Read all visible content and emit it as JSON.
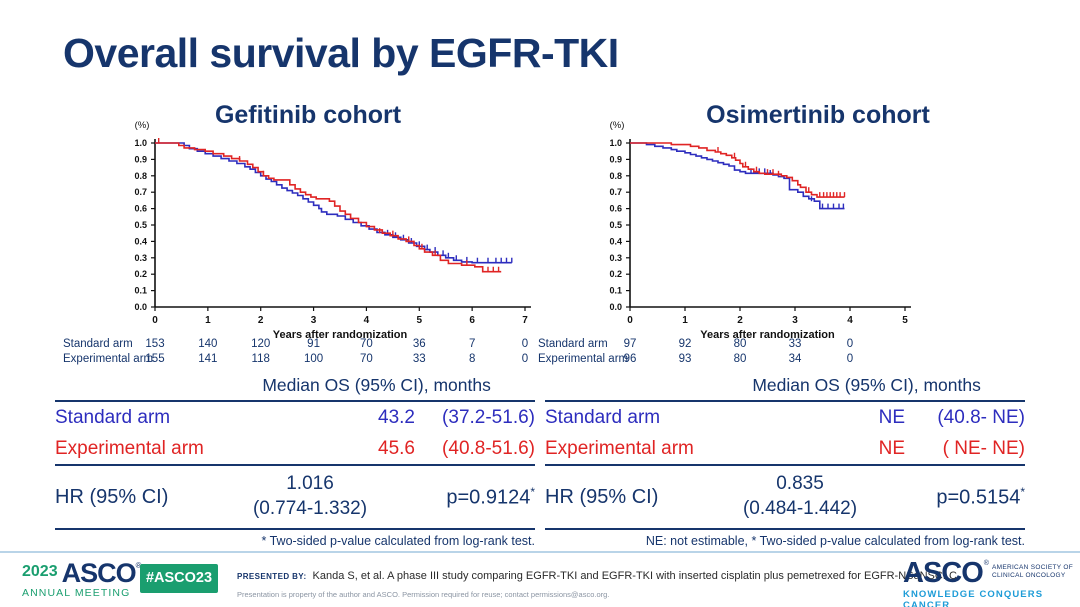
{
  "slide": {
    "title": "Overall survival by EGFR-TKI"
  },
  "colors": {
    "navy": "#16356c",
    "standard_blue": "#2d2dbe",
    "experimental_red": "#e02424",
    "asco_green": "#1a9e6f",
    "tagline_blue": "#1e9cd7",
    "divider_blue": "#b9d4e8"
  },
  "chart_data": [
    {
      "type": "line",
      "subtype": "kaplan-meier-step",
      "title": "Gefitinib cohort",
      "ylabel": "(%)",
      "xlabel": "Years after randomization",
      "xlim": [
        0,
        7
      ],
      "ylim": [
        0,
        1.0
      ],
      "xticks": [
        "0",
        "1",
        "2",
        "3",
        "4",
        "5",
        "6",
        "7"
      ],
      "yticks": [
        "0.0",
        "0.1",
        "0.2",
        "0.3",
        "0.4",
        "0.5",
        "0.6",
        "0.7",
        "0.8",
        "0.9",
        "1.0"
      ],
      "grid": false,
      "legend": "none",
      "series": [
        {
          "name": "Standard arm",
          "color": "#2d2dbe",
          "x_end": 6.75,
          "points": [
            [
              0,
              1.0
            ],
            [
              0.55,
              0.985
            ],
            [
              0.65,
              0.965
            ],
            [
              0.8,
              0.95
            ],
            [
              0.95,
              0.935
            ],
            [
              1.1,
              0.92
            ],
            [
              1.25,
              0.905
            ],
            [
              1.4,
              0.89
            ],
            [
              1.55,
              0.875
            ],
            [
              1.7,
              0.855
            ],
            [
              1.8,
              0.84
            ],
            [
              1.9,
              0.82
            ],
            [
              2.0,
              0.8
            ],
            [
              2.1,
              0.78
            ],
            [
              2.2,
              0.765
            ],
            [
              2.3,
              0.745
            ],
            [
              2.4,
              0.725
            ],
            [
              2.5,
              0.71
            ],
            [
              2.6,
              0.695
            ],
            [
              2.7,
              0.68
            ],
            [
              2.8,
              0.66
            ],
            [
              2.9,
              0.64
            ],
            [
              3.0,
              0.62
            ],
            [
              3.1,
              0.6
            ],
            [
              3.15,
              0.58
            ],
            [
              3.25,
              0.565
            ],
            [
              3.45,
              0.555
            ],
            [
              3.6,
              0.535
            ],
            [
              3.75,
              0.515
            ],
            [
              3.9,
              0.495
            ],
            [
              4.05,
              0.475
            ],
            [
              4.2,
              0.455
            ],
            [
              4.35,
              0.44
            ],
            [
              4.5,
              0.425
            ],
            [
              4.65,
              0.41
            ],
            [
              4.8,
              0.39
            ],
            [
              4.95,
              0.37
            ],
            [
              5.1,
              0.35
            ],
            [
              5.2,
              0.335
            ],
            [
              5.35,
              0.315
            ],
            [
              5.5,
              0.3
            ],
            [
              5.65,
              0.285
            ],
            [
              5.8,
              0.275
            ],
            [
              6.0,
              0.27
            ]
          ],
          "censors": [
            [
              4.4,
              0.44
            ],
            [
              4.55,
              0.425
            ],
            [
              4.7,
              0.41
            ],
            [
              4.85,
              0.39
            ],
            [
              5.0,
              0.37
            ],
            [
              5.15,
              0.35
            ],
            [
              5.3,
              0.335
            ],
            [
              5.45,
              0.315
            ],
            [
              5.55,
              0.3
            ],
            [
              5.7,
              0.285
            ],
            [
              5.9,
              0.275
            ],
            [
              6.1,
              0.27
            ],
            [
              6.3,
              0.27
            ],
            [
              6.45,
              0.27
            ],
            [
              6.55,
              0.27
            ],
            [
              6.65,
              0.27
            ],
            [
              6.75,
              0.27
            ]
          ]
        },
        {
          "name": "Experimental arm",
          "color": "#e02424",
          "x_end": 6.55,
          "points": [
            [
              0,
              1.0
            ],
            [
              0.45,
              0.985
            ],
            [
              0.55,
              0.97
            ],
            [
              0.75,
              0.96
            ],
            [
              0.95,
              0.95
            ],
            [
              1.1,
              0.935
            ],
            [
              1.3,
              0.92
            ],
            [
              1.45,
              0.905
            ],
            [
              1.6,
              0.89
            ],
            [
              1.75,
              0.87
            ],
            [
              1.85,
              0.85
            ],
            [
              1.95,
              0.825
            ],
            [
              2.05,
              0.8
            ],
            [
              2.15,
              0.785
            ],
            [
              2.25,
              0.775
            ],
            [
              2.55,
              0.745
            ],
            [
              2.65,
              0.72
            ],
            [
              2.75,
              0.7
            ],
            [
              2.85,
              0.685
            ],
            [
              2.95,
              0.67
            ],
            [
              3.05,
              0.66
            ],
            [
              3.3,
              0.645
            ],
            [
              3.4,
              0.615
            ],
            [
              3.5,
              0.585
            ],
            [
              3.6,
              0.565
            ],
            [
              3.7,
              0.54
            ],
            [
              3.85,
              0.515
            ],
            [
              4.0,
              0.49
            ],
            [
              4.15,
              0.47
            ],
            [
              4.3,
              0.45
            ],
            [
              4.45,
              0.435
            ],
            [
              4.6,
              0.415
            ],
            [
              4.75,
              0.4
            ],
            [
              4.9,
              0.375
            ],
            [
              5.0,
              0.355
            ],
            [
              5.1,
              0.335
            ],
            [
              5.25,
              0.315
            ],
            [
              5.4,
              0.285
            ],
            [
              5.55,
              0.265
            ],
            [
              5.8,
              0.255
            ],
            [
              6.05,
              0.245
            ],
            [
              6.2,
              0.215
            ]
          ],
          "censors": [
            [
              0.07,
              1.0
            ],
            [
              1.6,
              0.89
            ],
            [
              2.05,
              0.8
            ],
            [
              4.25,
              0.45
            ],
            [
              4.5,
              0.435
            ],
            [
              4.8,
              0.4
            ],
            [
              5.05,
              0.355
            ],
            [
              5.3,
              0.315
            ],
            [
              5.9,
              0.255
            ],
            [
              6.3,
              0.215
            ],
            [
              6.4,
              0.215
            ],
            [
              6.5,
              0.215
            ]
          ]
        }
      ],
      "at_risk": {
        "rows": [
          {
            "label": "Standard arm",
            "values": [
              "153",
              "140",
              "120",
              "91",
              "70",
              "36",
              "7",
              "0"
            ]
          },
          {
            "label": "Experimental arm",
            "values": [
              "155",
              "141",
              "118",
              "100",
              "70",
              "33",
              "8",
              "0"
            ]
          }
        ]
      }
    },
    {
      "type": "line",
      "subtype": "kaplan-meier-step",
      "title": "Osimertinib cohort",
      "ylabel": "(%)",
      "xlabel": "Years after randomization",
      "xlim": [
        0,
        5
      ],
      "ylim": [
        0,
        1.0
      ],
      "xticks": [
        "0",
        "1",
        "2",
        "3",
        "4",
        "5"
      ],
      "yticks": [
        "0.0",
        "0.1",
        "0.2",
        "0.3",
        "0.4",
        "0.5",
        "0.6",
        "0.7",
        "0.8",
        "0.9",
        "1.0"
      ],
      "grid": false,
      "legend": "none",
      "series": [
        {
          "name": "Standard arm",
          "color": "#2d2dbe",
          "x_end": 3.9,
          "points": [
            [
              0,
              1.0
            ],
            [
              0.3,
              0.99
            ],
            [
              0.45,
              0.98
            ],
            [
              0.6,
              0.97
            ],
            [
              0.75,
              0.96
            ],
            [
              0.85,
              0.95
            ],
            [
              1.0,
              0.94
            ],
            [
              1.1,
              0.93
            ],
            [
              1.2,
              0.92
            ],
            [
              1.3,
              0.91
            ],
            [
              1.4,
              0.9
            ],
            [
              1.5,
              0.89
            ],
            [
              1.6,
              0.88
            ],
            [
              1.7,
              0.87
            ],
            [
              1.8,
              0.86
            ],
            [
              1.9,
              0.835
            ],
            [
              2.0,
              0.825
            ],
            [
              2.1,
              0.815
            ],
            [
              2.6,
              0.805
            ],
            [
              2.7,
              0.795
            ],
            [
              2.8,
              0.785
            ],
            [
              2.9,
              0.715
            ],
            [
              3.05,
              0.7
            ],
            [
              3.15,
              0.675
            ],
            [
              3.25,
              0.66
            ],
            [
              3.35,
              0.645
            ],
            [
              3.45,
              0.6
            ]
          ],
          "censors": [
            [
              2.2,
              0.815
            ],
            [
              2.35,
              0.815
            ],
            [
              2.45,
              0.815
            ],
            [
              2.55,
              0.805
            ],
            [
              3.3,
              0.645
            ],
            [
              3.5,
              0.6
            ],
            [
              3.6,
              0.6
            ],
            [
              3.7,
              0.6
            ],
            [
              3.8,
              0.6
            ],
            [
              3.88,
              0.6
            ]
          ]
        },
        {
          "name": "Experimental arm",
          "color": "#e02424",
          "x_end": 3.9,
          "points": [
            [
              0,
              1.0
            ],
            [
              0.75,
              0.99
            ],
            [
              1.1,
              0.98
            ],
            [
              1.25,
              0.97
            ],
            [
              1.4,
              0.955
            ],
            [
              1.55,
              0.945
            ],
            [
              1.65,
              0.935
            ],
            [
              1.75,
              0.925
            ],
            [
              1.85,
              0.91
            ],
            [
              1.92,
              0.895
            ],
            [
              2.0,
              0.875
            ],
            [
              2.05,
              0.855
            ],
            [
              2.15,
              0.84
            ],
            [
              2.25,
              0.825
            ],
            [
              2.35,
              0.815
            ],
            [
              2.45,
              0.81
            ],
            [
              2.75,
              0.8
            ],
            [
              2.85,
              0.79
            ],
            [
              2.95,
              0.77
            ],
            [
              3.05,
              0.745
            ],
            [
              3.1,
              0.73
            ],
            [
              3.2,
              0.7
            ],
            [
              3.3,
              0.685
            ],
            [
              3.4,
              0.67
            ]
          ],
          "censors": [
            [
              1.6,
              0.945
            ],
            [
              1.9,
              0.91
            ],
            [
              2.1,
              0.855
            ],
            [
              2.3,
              0.825
            ],
            [
              2.5,
              0.81
            ],
            [
              2.6,
              0.81
            ],
            [
              2.7,
              0.8
            ],
            [
              3.25,
              0.7
            ],
            [
              3.45,
              0.67
            ],
            [
              3.52,
              0.67
            ],
            [
              3.58,
              0.67
            ],
            [
              3.64,
              0.67
            ],
            [
              3.7,
              0.67
            ],
            [
              3.76,
              0.67
            ],
            [
              3.82,
              0.67
            ],
            [
              3.9,
              0.67
            ]
          ]
        }
      ],
      "at_risk": {
        "rows": [
          {
            "label": "Standard arm",
            "values": [
              "97",
              "92",
              "80",
              "33",
              "0"
            ]
          },
          {
            "label": "Experimental arm",
            "values": [
              "96",
              "93",
              "80",
              "34",
              "0"
            ]
          }
        ]
      }
    }
  ],
  "cohorts": [
    {
      "table": {
        "header": "Median OS (95% CI), months",
        "rows": [
          {
            "label": "Standard arm",
            "median": "43.2",
            "ci": "(37.2-51.6)"
          },
          {
            "label": "Experimental arm",
            "median": "45.6",
            "ci": "(40.8-51.6)"
          }
        ],
        "hr_label": "HR (95% CI)",
        "hr_value": "1.016",
        "hr_ci": "(0.774-1.332)",
        "p_value": "p=0.9124",
        "p_sup": "*",
        "footnote": "* Two-sided p-value calculated from log-rank test."
      }
    },
    {
      "table": {
        "header": "Median OS (95% CI), months",
        "rows": [
          {
            "label": "Standard arm",
            "median": "NE",
            "ci": "(40.8-  NE)"
          },
          {
            "label": "Experimental arm",
            "median": "NE",
            "ci": "(  NE-  NE)"
          }
        ],
        "hr_label": "HR (95% CI)",
        "hr_value": "0.835",
        "hr_ci": "(0.484-1.442)",
        "p_value": "p=0.5154",
        "p_sup": "*",
        "footnote": "NE: not estimable, * Two-sided p-value calculated from log-rank test."
      }
    }
  ],
  "footer": {
    "meeting_logo": {
      "year": "2023",
      "org": "ASCO",
      "reg": "®",
      "sub": "ANNUAL MEETING"
    },
    "hashtag": "#ASCO23",
    "presented_by_label": "PRESENTED BY:",
    "citation": "Kanda S, et al. A phase III study comparing EGFR-TKI and EGFR-TKI with inserted cisplatin plus pemetrexed for EGFR-NSqNSCLC",
    "fine_print": "Presentation is property of the author and ASCO. Permission required for reuse; contact permissions@asco.org.",
    "asco_logo": {
      "org": "ASCO",
      "reg": "®",
      "society_line1": "AMERICAN SOCIETY OF",
      "society_line2": "CLINICAL ONCOLOGY",
      "tagline": "KNOWLEDGE CONQUERS CANCER"
    }
  }
}
